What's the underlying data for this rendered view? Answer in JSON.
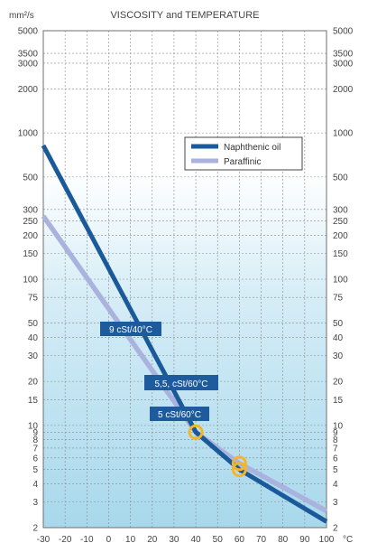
{
  "chart_data": {
    "type": "line",
    "title": "VISCOSITY and TEMPERATURE",
    "y_unit": "mm²/s",
    "x_unit": "°C",
    "y_scale": "log",
    "xlim": [
      -30,
      100
    ],
    "ylim": [
      2,
      5000
    ],
    "x_ticks": [
      -30,
      -20,
      -10,
      0,
      10,
      20,
      30,
      40,
      50,
      60,
      70,
      80,
      90,
      100
    ],
    "y_ticks": [
      2,
      3,
      4,
      5,
      6,
      7,
      8,
      9,
      10,
      15,
      20,
      30,
      40,
      50,
      75,
      100,
      150,
      200,
      250,
      300,
      500,
      1000,
      2000,
      3000,
      3500,
      5000
    ],
    "grid": true,
    "legend_position": "upper-right",
    "series": [
      {
        "name": "Naphthenic oil",
        "color": "#1b5a9a",
        "x": [
          -30,
          40,
          60,
          100
        ],
        "y": [
          820,
          9,
          5,
          2.2
        ]
      },
      {
        "name": "Paraffinic",
        "color": "#aab2de",
        "x": [
          -30,
          40,
          60,
          100
        ],
        "y": [
          270,
          9,
          5.5,
          2.6
        ]
      }
    ],
    "annotations": [
      {
        "label": "9 cSt/40°C",
        "x": 40,
        "y": 9
      },
      {
        "label": "5,5, cSt/60°C",
        "x": 60,
        "y": 5.5
      },
      {
        "label": "5 cSt/60°C",
        "x": 60,
        "y": 5
      }
    ]
  }
}
